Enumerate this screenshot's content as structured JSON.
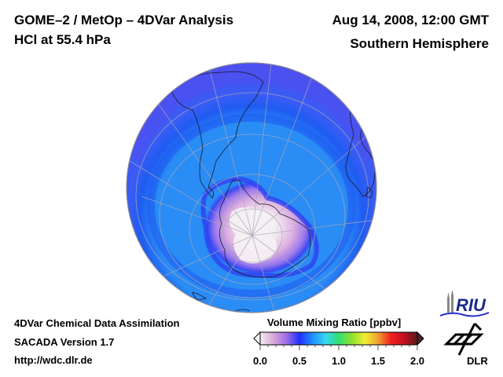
{
  "header": {
    "title_line1": "GOME–2 / MetOp – 4DVar Analysis",
    "title_line2": "HCl at 55.4 hPa",
    "date": "Aug 14, 2008, 12:00 GMT",
    "region": "Southern Hemisphere"
  },
  "footer": {
    "line1": "4DVar Chemical Data Assimilation",
    "line2": "SACADA Version 1.7",
    "line3": "http://wdc.dlr.de"
  },
  "colorbar": {
    "title": "Volume Mixing Ratio [ppbv]",
    "min": 0.0,
    "max": 2.0,
    "ticks": [
      "0.0",
      "0.5",
      "1.0",
      "1.5",
      "2.0"
    ],
    "colors": [
      "#f4eef0",
      "#d9a8d8",
      "#a070e8",
      "#2030ff",
      "#1e90ff",
      "#38d8f0",
      "#30e070",
      "#90e030",
      "#f0f030",
      "#f0a030",
      "#f02020",
      "#c01020",
      "#5a1a1a"
    ]
  },
  "logos": {
    "riu": "RIU",
    "dlr": "DLR"
  },
  "map": {
    "projection": "orthographic-south-polar",
    "colors": {
      "outer": "#4a4ef0",
      "mid_band": "#2a5cf5",
      "middle": "#2a8cf5",
      "vortex_edge": "#3040f0",
      "vortex_inner": "#d8a8e0",
      "vortex_core": "#f2eef0",
      "coastline": "#1a1a2a",
      "graticule": "#a8a8b8"
    }
  }
}
